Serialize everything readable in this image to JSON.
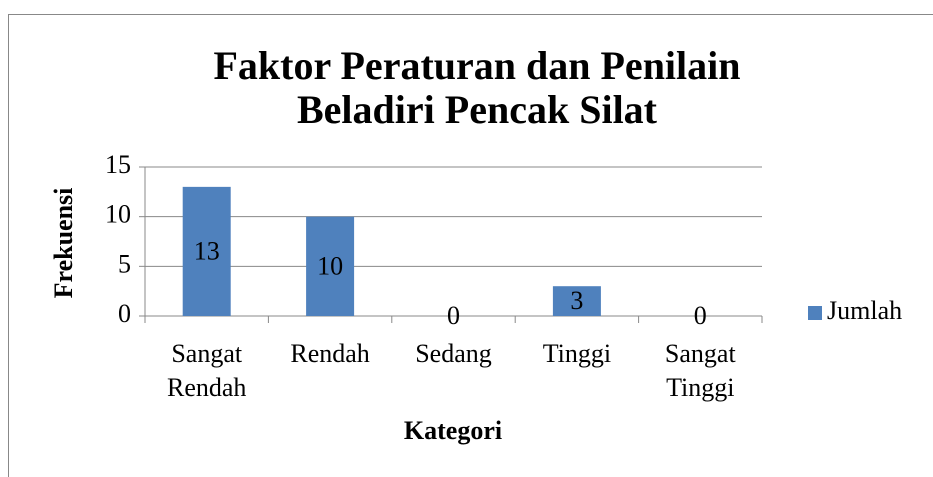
{
  "chart_data": {
    "type": "bar",
    "title": [
      "Faktor Peraturan dan Penilain",
      "Beladiri Pencak Silat"
    ],
    "x_label": "Kategori",
    "y_label": "Frekuensi",
    "categories": [
      "Sangat Rendah",
      "Rendah",
      "Sedang",
      "Tinggi",
      "Sangat Tinggi"
    ],
    "series": [
      {
        "name": "Jumlah",
        "color": "#4f81bd",
        "values": [
          13,
          10,
          0,
          3,
          0
        ]
      }
    ],
    "ylim": [
      0,
      15
    ],
    "yticks": [
      0,
      5,
      10,
      15
    ],
    "grid": true,
    "legend": "right"
  }
}
